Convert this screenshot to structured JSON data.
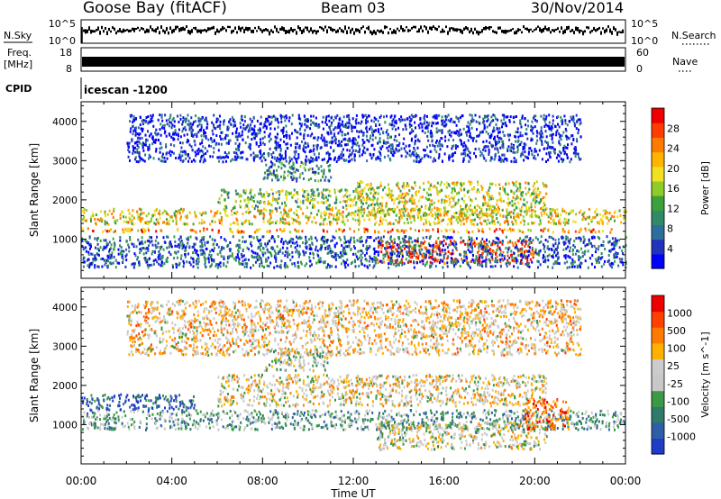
{
  "header": {
    "station": "Goose Bay (fitACF)",
    "beam": "Beam 03",
    "date": "30/Nov/2014"
  },
  "strips": {
    "nsky_label": "N.Sky",
    "nsearch_label": "N.Search",
    "nsky_ticks": [
      "10^5",
      "10^0"
    ],
    "nsearch_ticks": [
      "10^5",
      "10^0"
    ],
    "freq_label": "Freq.",
    "freq_unit": "[MHz]",
    "freq_ticks": [
      "18",
      "8"
    ],
    "nave_label": "Nave",
    "nave_ticks": [
      "60",
      "0"
    ],
    "cpid_label": "CPID",
    "cpid_value": "icescan -1200"
  },
  "chart_data": [
    {
      "type": "heatmap",
      "panel": "power",
      "ylabel": "Slant Range [km]",
      "ylim": [
        0,
        4500
      ],
      "yticks": [
        1000,
        2000,
        3000,
        4000
      ],
      "colorbar": {
        "label": "Power [dB]",
        "range": [
          0,
          32
        ],
        "ticks": [
          "4",
          "8",
          "12",
          "16",
          "20",
          "24",
          "28"
        ],
        "colors": [
          "#0000ff",
          "#2233bb",
          "#2d6e9e",
          "#2f8a66",
          "#3ea03a",
          "#8fcc2a",
          "#f0e020",
          "#ffb400",
          "#ff7a00",
          "#ff3d00",
          "#ee0000"
        ]
      },
      "scatter_bands": [
        {
          "t0": 0,
          "t1": 24,
          "r0": 1200,
          "r1": 1300,
          "level": 0.75
        },
        {
          "t0": 0,
          "t1": 24,
          "r0": 1400,
          "r1": 1800,
          "level": 0.6
        },
        {
          "t0": 6,
          "t1": 12,
          "r0": 1800,
          "r1": 2300,
          "level": 0.45
        },
        {
          "t0": 12,
          "t1": 20.5,
          "r0": 1600,
          "r1": 2500,
          "level": 0.55
        },
        {
          "t0": 13,
          "t1": 20,
          "r0": 400,
          "r1": 1000,
          "level": 0.9
        },
        {
          "t0": 8,
          "t1": 11,
          "r0": 2500,
          "r1": 3000,
          "level": 0.3
        },
        {
          "t0": 0,
          "t1": 24,
          "r0": 300,
          "r1": 1100,
          "level": 0.2
        },
        {
          "t0": 2,
          "t1": 22,
          "r0": 3000,
          "r1": 4200,
          "level": 0.1
        }
      ]
    },
    {
      "type": "heatmap",
      "panel": "velocity",
      "ylabel": "Slant Range [km]",
      "ylim": [
        0,
        4500
      ],
      "yticks": [
        1000,
        2000,
        3000,
        4000
      ],
      "colorbar": {
        "label": "Velocity [m s^-1]",
        "ticks": [
          "1000",
          "500",
          "100",
          "25",
          "-25",
          "-100",
          "-500",
          "-1000"
        ],
        "colors": [
          "#1e3cc8",
          "#2e5fa6",
          "#2f7a6a",
          "#3a9a46",
          "#c8c8c8",
          "#cccccc",
          "#ffb000",
          "#ff7a00",
          "#ff4000",
          "#ee0000"
        ]
      },
      "scatter_bands": [
        {
          "t0": 0,
          "t1": 24,
          "r0": 900,
          "r1": 1400,
          "level": 0.35
        },
        {
          "t0": 0,
          "t1": 5,
          "r0": 1400,
          "r1": 1800,
          "level": 0.15
        },
        {
          "t0": 6,
          "t1": 20.5,
          "r0": 1500,
          "r1": 2300,
          "level": 0.55
        },
        {
          "t0": 13,
          "t1": 20.5,
          "r0": 400,
          "r1": 1100,
          "level": 0.5
        },
        {
          "t0": 19.5,
          "t1": 21.5,
          "r0": 900,
          "r1": 1700,
          "level": 0.8
        },
        {
          "t0": 8,
          "t1": 11,
          "r0": 2400,
          "r1": 2900,
          "level": 0.45
        },
        {
          "t0": 2,
          "t1": 22,
          "r0": 2800,
          "r1": 4200,
          "level": 0.6
        }
      ]
    }
  ],
  "x_axis": {
    "label": "Time UT",
    "ticks": [
      "00:00",
      "04:00",
      "08:00",
      "12:00",
      "16:00",
      "20:00",
      "00:00"
    ],
    "range_hours": [
      0,
      24
    ]
  }
}
